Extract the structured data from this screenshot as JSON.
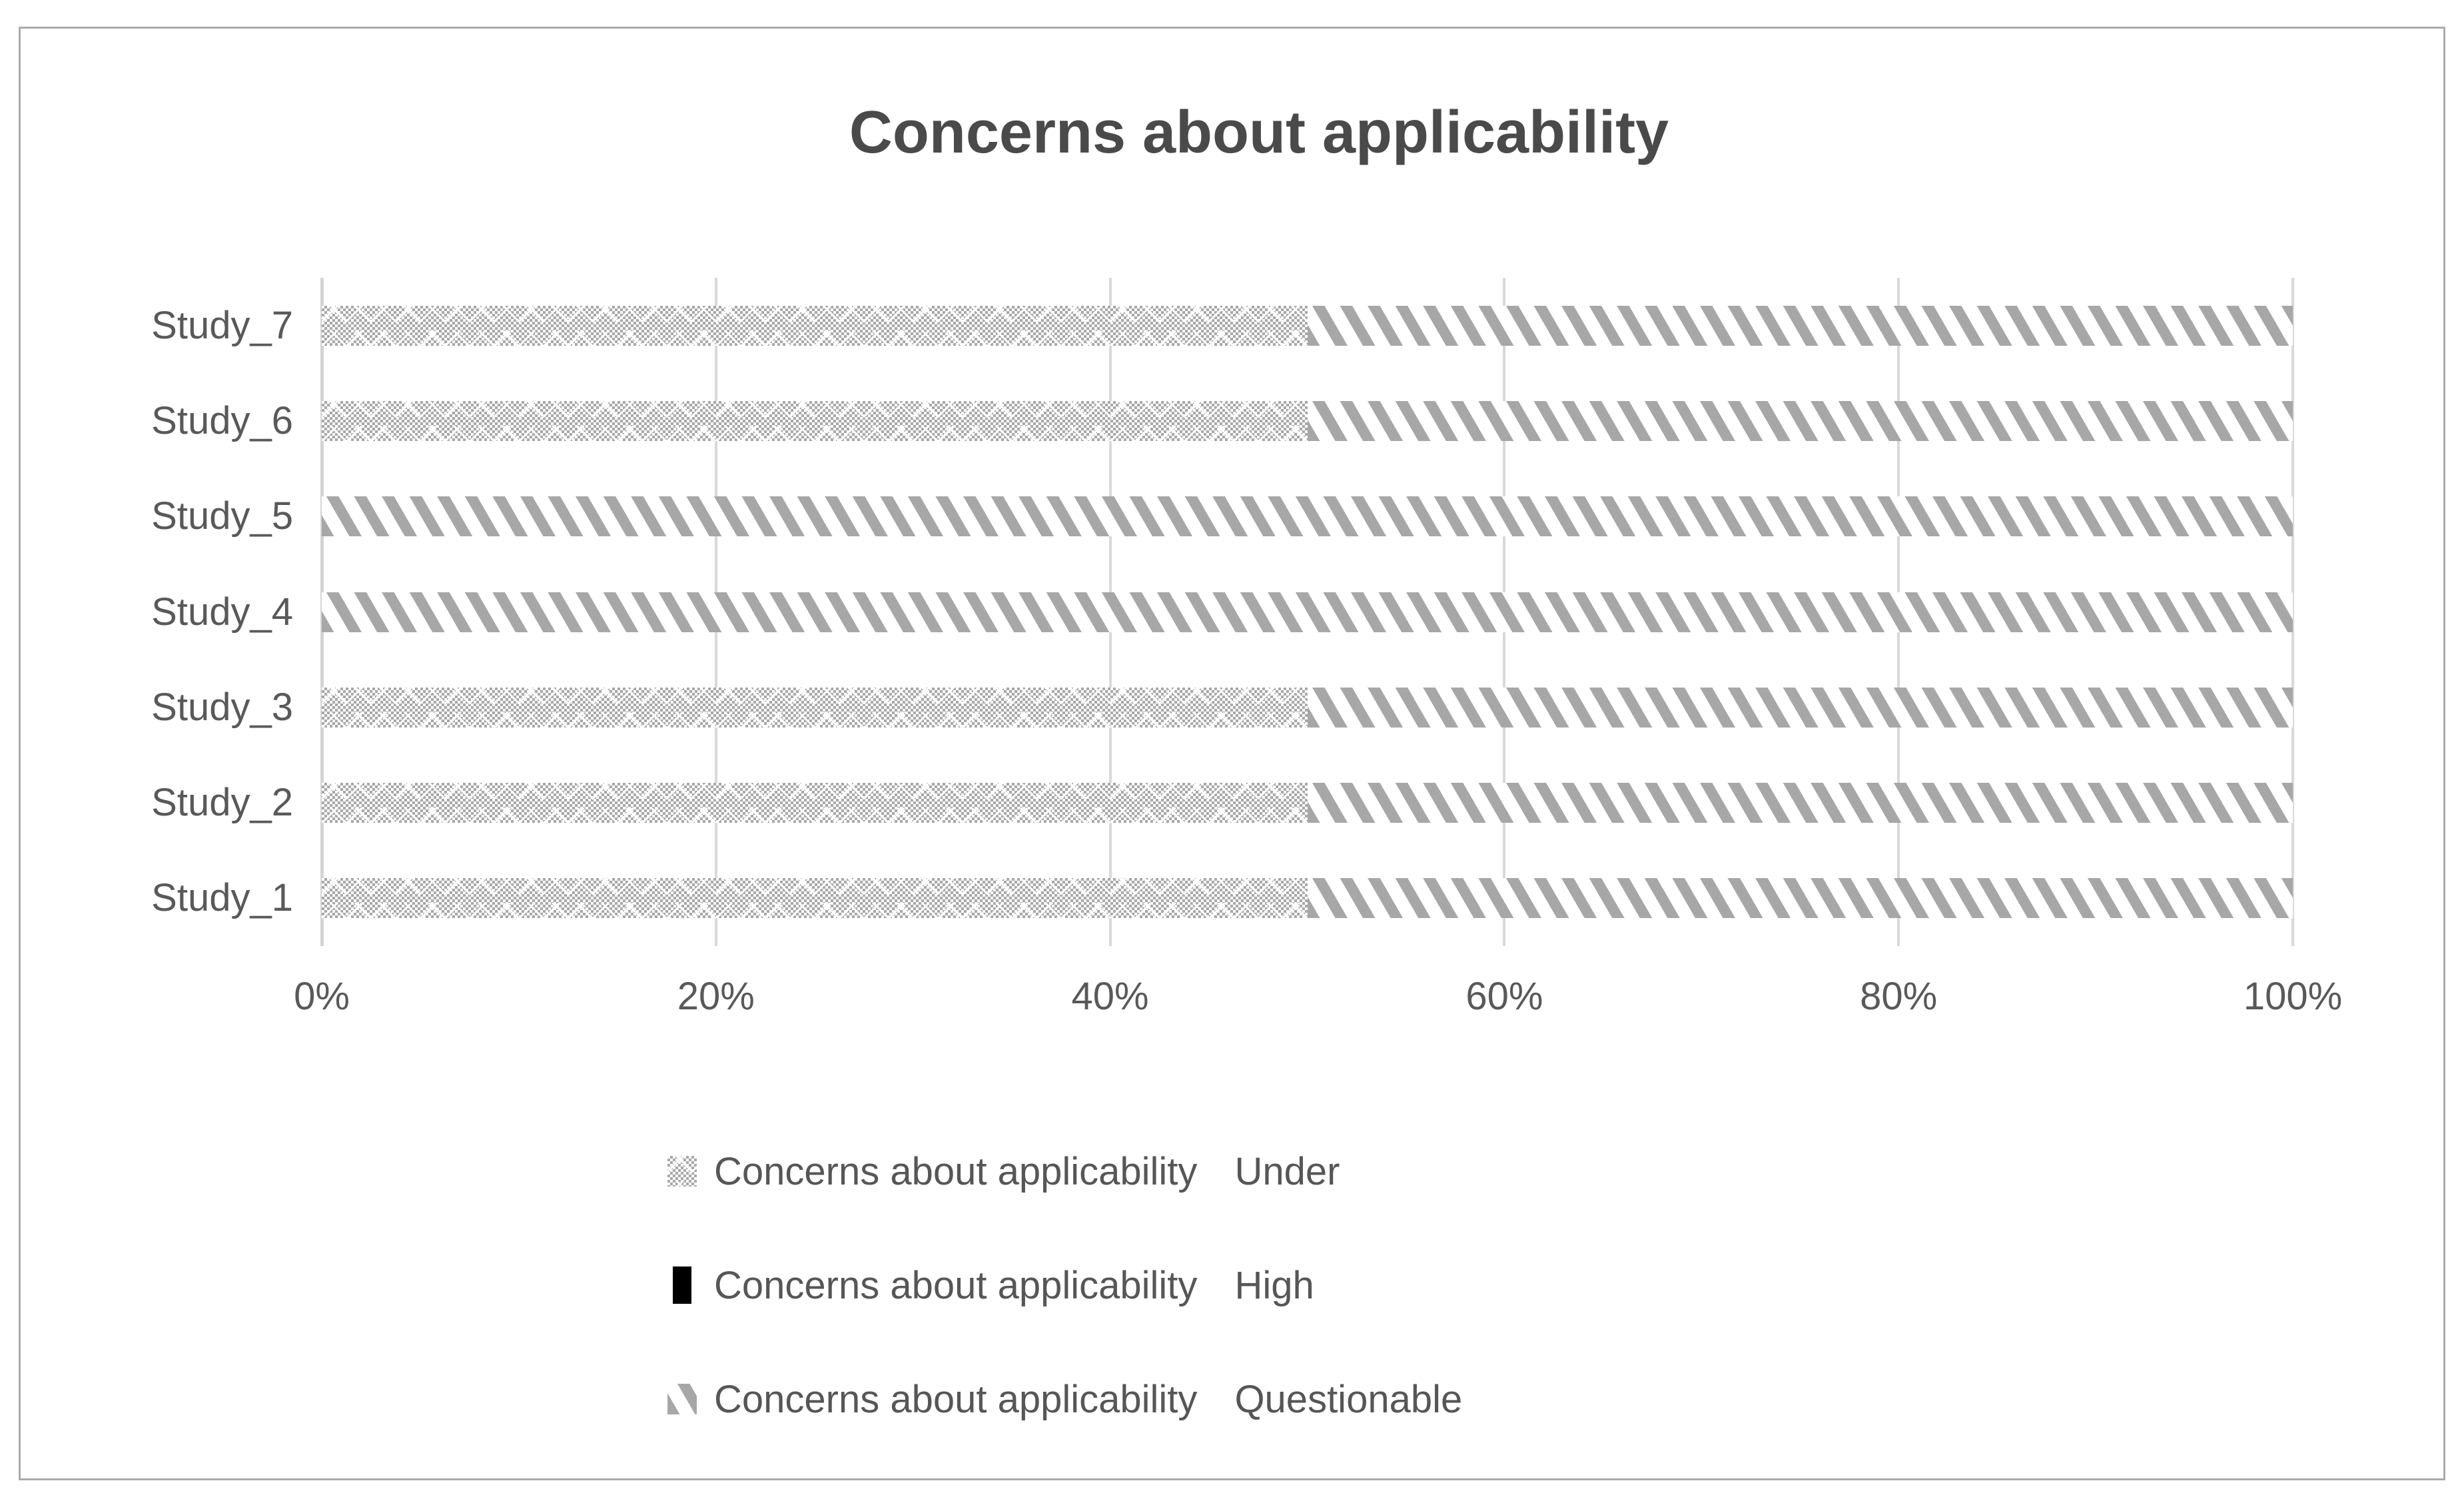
{
  "title": "Concerns about applicability",
  "chart_data": {
    "type": "bar",
    "orientation": "horizontal",
    "stacked": true,
    "title": "Concerns about applicability",
    "categories": [
      "Study_7",
      "Study_6",
      "Study_5",
      "Study_4",
      "Study_3",
      "Study_2",
      "Study_1"
    ],
    "series": [
      {
        "prefix": "Concerns about applicability",
        "level": "Under",
        "pattern": "checker",
        "values": [
          50,
          50,
          0,
          0,
          50,
          50,
          50
        ]
      },
      {
        "prefix": "Concerns about applicability",
        "level": "High",
        "pattern": "black",
        "values": [
          0,
          0,
          0,
          0,
          0,
          0,
          0
        ]
      },
      {
        "prefix": "Concerns about applicability",
        "level": "Questionable",
        "pattern": "diag",
        "values": [
          50,
          50,
          100,
          100,
          50,
          50,
          50
        ]
      }
    ],
    "x_ticks": [
      "0%",
      "20%",
      "40%",
      "60%",
      "80%",
      "100%"
    ],
    "xlim": [
      0,
      100
    ],
    "grid": true,
    "legend_position": "bottom",
    "colors": {
      "pattern_gray": "#a7a7a7",
      "high_black": "#000000",
      "gridline": "#d9d9d9",
      "axis_label": "#595959",
      "title_text": "#4a4a4a",
      "frame_border": "#ababab"
    }
  }
}
